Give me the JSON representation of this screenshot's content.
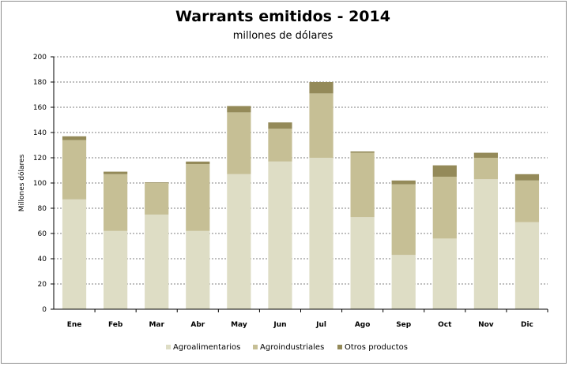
{
  "chart_data": {
    "type": "bar",
    "stacked": true,
    "title": "Warrants emitidos  - 2014",
    "subtitle": "millones de dólares",
    "xlabel": "",
    "ylabel": "Millones dólares",
    "ylim": [
      0,
      200
    ],
    "yticks": [
      0,
      20,
      40,
      60,
      80,
      100,
      120,
      140,
      160,
      180,
      200
    ],
    "grid": true,
    "legend": "bottom",
    "categories": [
      "Ene",
      "Feb",
      "Mar",
      "Abr",
      "May",
      "Jun",
      "Jul",
      "Ago",
      "Sep",
      "Oct",
      "Nov",
      "Dic"
    ],
    "series": [
      {
        "name": "Agroalimentarios",
        "color": "#deddc5",
        "values": [
          87,
          62,
          75,
          62,
          107,
          117,
          120,
          73,
          43,
          56,
          103,
          69
        ]
      },
      {
        "name": "Agroindustriales",
        "color": "#c6bf95",
        "values": [
          47,
          45,
          25,
          53,
          49,
          26,
          51,
          51,
          56,
          49,
          17,
          33
        ]
      },
      {
        "name": "Otros productos",
        "color": "#948a59",
        "values": [
          3,
          2,
          0.5,
          2,
          5,
          5,
          9,
          1,
          3,
          9,
          4,
          5
        ]
      }
    ]
  }
}
